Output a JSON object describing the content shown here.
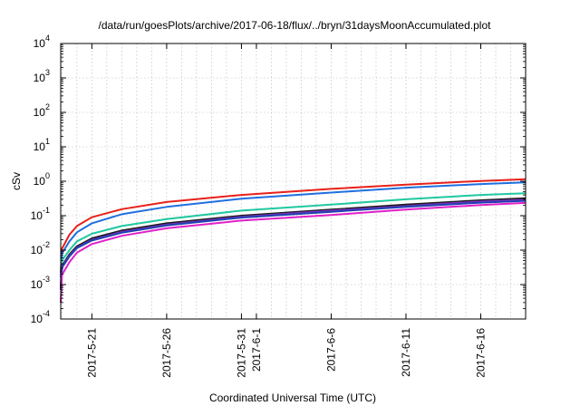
{
  "chart_data": {
    "type": "line",
    "title": "/data/run/goesPlots/archive/2017-06-18/flux/../bryn/31daysMoonAccumulated.plot",
    "xlabel": "Coordinated Universal Time (UTC)",
    "ylabel": "cSv",
    "x_range": [
      "2017-05-18T22:00",
      "2017-06-19T00:00"
    ],
    "x_ticks": [
      "2017-5-21",
      "2017-5-26",
      "2017-5-31",
      "2017-6-1",
      "2017-6-6",
      "2017-6-11",
      "2017-6-16"
    ],
    "y_scale": "log",
    "y_range": [
      0.0001,
      10000
    ],
    "y_ticks": [
      {
        "base": "10",
        "exp": "-4",
        "value": 0.0001
      },
      {
        "base": "10",
        "exp": "-3",
        "value": 0.001
      },
      {
        "base": "10",
        "exp": "-2",
        "value": 0.01
      },
      {
        "base": "10",
        "exp": "-1",
        "value": 0.1
      },
      {
        "base": "10",
        "exp": "0",
        "value": 1
      },
      {
        "base": "10",
        "exp": "1",
        "value": 10
      },
      {
        "base": "10",
        "exp": "2",
        "value": 100
      },
      {
        "base": "10",
        "exp": "3",
        "value": 1000
      },
      {
        "base": "10",
        "exp": "4",
        "value": 10000
      }
    ],
    "grid": true,
    "legend": "none",
    "series": [
      {
        "color": "#e8201a",
        "x": [
          "2017-05-18T22:00",
          "2017-05-19T00:00",
          "2017-05-19T12:00",
          "2017-05-20T00:00",
          "2017-05-21T00:00",
          "2017-05-23T00:00",
          "2017-05-26T00:00",
          "2017-05-31T00:00",
          "2017-06-06T00:00",
          "2017-06-11T00:00",
          "2017-06-16T00:00",
          "2017-06-19T00:00"
        ],
        "y": [
          0.0022,
          0.011,
          0.028,
          0.05,
          0.09,
          0.155,
          0.25,
          0.4,
          0.6,
          0.8,
          1.02,
          1.15
        ]
      },
      {
        "color": "#1f6fe0",
        "x": [
          "2017-05-18T22:00",
          "2017-05-19T00:00",
          "2017-05-19T12:00",
          "2017-05-20T00:00",
          "2017-05-21T00:00",
          "2017-05-23T00:00",
          "2017-05-26T00:00",
          "2017-05-31T00:00",
          "2017-06-06T00:00",
          "2017-06-11T00:00",
          "2017-06-16T00:00",
          "2017-06-19T00:00"
        ],
        "y": [
          0.0016,
          0.008,
          0.018,
          0.033,
          0.06,
          0.11,
          0.18,
          0.31,
          0.47,
          0.65,
          0.83,
          0.93
        ]
      },
      {
        "color": "#20c8a0",
        "x": [
          "2017-05-18T22:00",
          "2017-05-19T00:00",
          "2017-05-19T12:00",
          "2017-05-20T00:00",
          "2017-05-21T00:00",
          "2017-05-23T00:00",
          "2017-05-26T00:00",
          "2017-05-31T00:00",
          "2017-06-06T00:00",
          "2017-06-11T00:00",
          "2017-06-16T00:00",
          "2017-06-19T00:00"
        ],
        "y": [
          0.0011,
          0.005,
          0.01,
          0.018,
          0.03,
          0.05,
          0.08,
          0.14,
          0.21,
          0.3,
          0.4,
          0.45
        ]
      },
      {
        "color": "#1a1a1a",
        "x": [
          "2017-05-18T22:00",
          "2017-05-19T00:00",
          "2017-05-19T12:00",
          "2017-05-20T00:00",
          "2017-05-21T00:00",
          "2017-05-23T00:00",
          "2017-05-26T00:00",
          "2017-05-31T00:00",
          "2017-06-06T00:00",
          "2017-06-11T00:00",
          "2017-06-16T00:00",
          "2017-06-19T00:00"
        ],
        "y": [
          0.0008,
          0.0035,
          0.0075,
          0.013,
          0.022,
          0.037,
          0.06,
          0.1,
          0.15,
          0.21,
          0.28,
          0.32
        ]
      },
      {
        "color": "#7b2fbe",
        "x": [
          "2017-05-18T22:00",
          "2017-05-19T00:00",
          "2017-05-19T12:00",
          "2017-05-20T00:00",
          "2017-05-21T00:00",
          "2017-05-23T00:00",
          "2017-05-26T00:00",
          "2017-05-31T00:00",
          "2017-06-06T00:00",
          "2017-06-11T00:00",
          "2017-06-16T00:00",
          "2017-06-19T00:00"
        ],
        "y": [
          0.00075,
          0.0033,
          0.007,
          0.012,
          0.02,
          0.034,
          0.055,
          0.093,
          0.14,
          0.19,
          0.26,
          0.29
        ]
      },
      {
        "color": "#2040b0",
        "x": [
          "2017-05-18T22:00",
          "2017-05-19T00:00",
          "2017-05-19T12:00",
          "2017-05-20T00:00",
          "2017-05-21T00:00",
          "2017-05-23T00:00",
          "2017-05-26T00:00",
          "2017-05-31T00:00",
          "2017-06-06T00:00",
          "2017-06-11T00:00",
          "2017-06-16T00:00",
          "2017-06-19T00:00"
        ],
        "y": [
          0.0007,
          0.0031,
          0.0066,
          0.0115,
          0.019,
          0.032,
          0.052,
          0.088,
          0.13,
          0.18,
          0.24,
          0.27
        ]
      },
      {
        "color": "#e020c8",
        "x": [
          "2017-05-18T22:00",
          "2017-05-19T00:00",
          "2017-05-19T12:00",
          "2017-05-20T00:00",
          "2017-05-21T00:00",
          "2017-05-23T00:00",
          "2017-05-26T00:00",
          "2017-05-31T00:00",
          "2017-06-06T00:00",
          "2017-06-11T00:00",
          "2017-06-16T00:00",
          "2017-06-19T00:00"
        ],
        "y": [
          0.0003,
          0.0019,
          0.0045,
          0.0085,
          0.015,
          0.026,
          0.043,
          0.072,
          0.105,
          0.15,
          0.205,
          0.235
        ]
      }
    ]
  }
}
